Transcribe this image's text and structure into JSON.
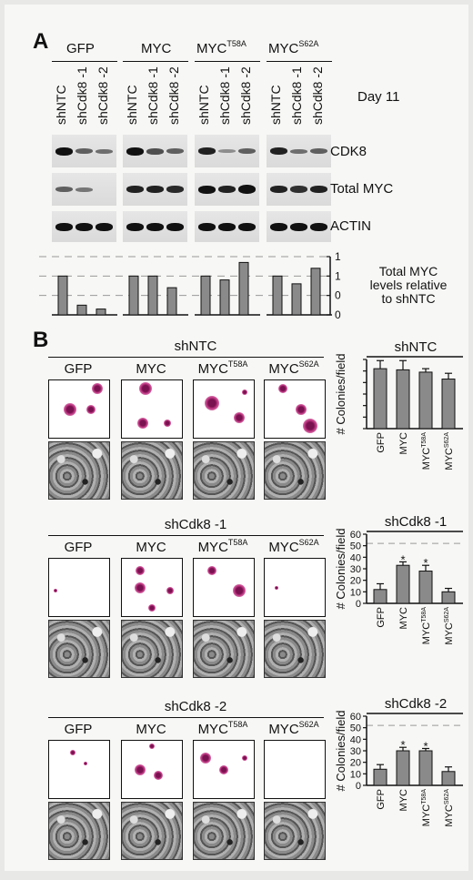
{
  "panel_a": {
    "letter": "A",
    "groups": [
      {
        "base": "GFP",
        "sup": ""
      },
      {
        "base": "MYC",
        "sup": ""
      },
      {
        "base": "MYC",
        "sup": "T58A"
      },
      {
        "base": "MYC",
        "sup": "S62A"
      }
    ],
    "lanes": [
      "shNTC",
      "shCdk8 -1",
      "shCdk8 -2"
    ],
    "day_label": "Day 11",
    "blot_labels": [
      "CDK8",
      "Total MYC",
      "ACTIN"
    ],
    "quant_caption": [
      "Total MYC",
      "levels relative",
      "to shNTC"
    ]
  },
  "panel_b": {
    "letter": "B",
    "conditions": [
      "GFP",
      "MYC",
      "MYC",
      "MYC"
    ],
    "condition_sups": [
      "",
      "",
      "T58A",
      "S62A"
    ],
    "rows": [
      {
        "title": "shNTC"
      },
      {
        "title": "shCdk8 -1"
      },
      {
        "title": "shCdk8 -2"
      }
    ],
    "y_axis_label": "# Colonies/field",
    "x_categories": [
      "GFP",
      "MYC",
      "MYC",
      "MYC"
    ],
    "x_sups": [
      "",
      "",
      "T58A",
      "S62A"
    ],
    "star": "*"
  },
  "chart_data": [
    {
      "type": "bar",
      "title": "",
      "ylabel": "Total MYC levels relative to shNTC",
      "categories": [
        "GFP shNTC",
        "GFP shCdk8 -1",
        "GFP shCdk8 -2",
        "MYC shNTC",
        "MYC shCdk8 -1",
        "MYC shCdk8 -2",
        "MYC T58A shNTC",
        "MYC T58A shCdk8 -1",
        "MYC T58A shCdk8 -2",
        "MYC S62A shNTC",
        "MYC S62A shCdk8 -1",
        "MYC S62A shCdk8 -2"
      ],
      "values": [
        1.0,
        0.25,
        0.15,
        1.0,
        1.0,
        0.7,
        1.0,
        0.9,
        1.35,
        1.0,
        0.8,
        1.2
      ],
      "yticks": [
        "1.5",
        "1.0",
        "0.5",
        "0.0"
      ],
      "ylim": [
        0,
        1.5
      ],
      "grid": "dashed"
    },
    {
      "type": "bar",
      "title": "shNTC",
      "ylabel": "# Colonies/field",
      "categories": [
        "GFP",
        "MYC",
        "MYCT58A",
        "MYCS62A"
      ],
      "values": [
        52,
        51,
        49,
        43
      ],
      "errors": [
        7,
        8,
        3,
        5
      ],
      "significant": [
        false,
        false,
        false,
        false
      ],
      "yticks": [],
      "ylim": [
        0,
        60
      ]
    },
    {
      "type": "bar",
      "title": "shCdk8 -1",
      "ylabel": "# Colonies/field",
      "categories": [
        "GFP",
        "MYC",
        "MYCT58A",
        "MYCS62A"
      ],
      "values": [
        12,
        33,
        28,
        10
      ],
      "errors": [
        5,
        3,
        5,
        3
      ],
      "significant": [
        false,
        true,
        true,
        false
      ],
      "yticks": [
        "0",
        "10",
        "20",
        "30",
        "40",
        "50",
        "60"
      ],
      "ylim": [
        0,
        60
      ],
      "reference_line": 52
    },
    {
      "type": "bar",
      "title": "shCdk8 -2",
      "ylabel": "# Colonies/field",
      "categories": [
        "GFP",
        "MYC",
        "MYCT58A",
        "MYCS62A"
      ],
      "values": [
        14,
        30,
        30,
        12
      ],
      "errors": [
        4,
        3,
        2,
        4
      ],
      "significant": [
        false,
        true,
        true,
        false
      ],
      "yticks": [
        "0",
        "10",
        "20",
        "30",
        "40",
        "50",
        "60"
      ],
      "ylim": [
        0,
        60
      ],
      "reference_line": 52
    }
  ]
}
